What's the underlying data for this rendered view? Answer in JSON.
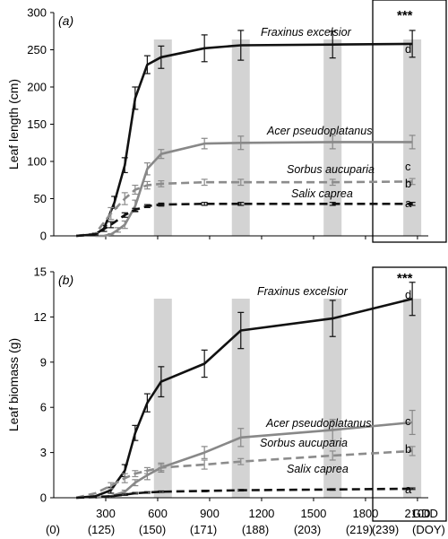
{
  "chart_data": [
    {
      "type": "line",
      "panel_label": "(a)",
      "ylabel": "Leaf length (cm)",
      "ylim": [
        0,
        300
      ],
      "yticks": [
        "0",
        "50",
        "100",
        "150",
        "200",
        "250",
        "300"
      ],
      "significance": "***",
      "x_ticks_gdd": [
        "300",
        "600",
        "900",
        "1200",
        "1500",
        "1800",
        "2100"
      ],
      "x_ticks_doy": [
        "(0)",
        "(125)",
        "(150)",
        "(171)",
        "(188)",
        "(203)",
        "(219)",
        "(239)"
      ],
      "x_unit_gdd": "GDD",
      "x_unit_doy": "(DOY)",
      "shaded_gdd": [
        630,
        1080,
        1610,
        2070
      ],
      "series": [
        {
          "name": "Fraxinus excelsior",
          "group": "d",
          "color": "#111111",
          "dashed": false,
          "x": [
            130,
            240,
            290,
            350,
            410,
            470,
            540,
            620,
            870,
            1080,
            1610,
            2070
          ],
          "y": [
            0,
            2,
            10,
            45,
            95,
            185,
            230,
            240,
            252,
            256,
            257,
            258
          ],
          "err": [
            0,
            1,
            4,
            8,
            10,
            15,
            12,
            15,
            18,
            20,
            18,
            18
          ]
        },
        {
          "name": "Acer pseudoplatanus",
          "group": "c",
          "color": "#888888",
          "dashed": false,
          "x": [
            240,
            290,
            330,
            370,
            410,
            470,
            540,
            620,
            870,
            1080,
            1610,
            2070
          ],
          "y": [
            0,
            0,
            2,
            8,
            15,
            40,
            90,
            110,
            124,
            125,
            126,
            126
          ],
          "err": [
            0,
            0,
            1,
            3,
            5,
            8,
            8,
            6,
            7,
            9,
            9,
            9
          ]
        },
        {
          "name": "Sorbus aucuparia",
          "group": "b",
          "color": "#8c8c8c",
          "dashed": true,
          "x": [
            130,
            240,
            330,
            410,
            470,
            540,
            620,
            870,
            1080,
            1610,
            2070
          ],
          "y": [
            0,
            3,
            30,
            50,
            62,
            68,
            70,
            72,
            72,
            72,
            73
          ],
          "err": [
            0,
            1,
            8,
            8,
            6,
            5,
            4,
            4,
            4,
            4,
            4
          ]
        },
        {
          "name": "Salix caprea",
          "group": "a",
          "color": "#111111",
          "dashed": true,
          "x": [
            130,
            240,
            330,
            410,
            470,
            540,
            620,
            870,
            1080,
            1610,
            2070
          ],
          "y": [
            0,
            2,
            15,
            28,
            35,
            40,
            42,
            43,
            43,
            43,
            43
          ],
          "err": [
            0,
            1,
            4,
            3,
            2,
            2,
            2,
            2,
            2,
            2,
            2
          ]
        }
      ]
    },
    {
      "type": "line",
      "panel_label": "(b)",
      "ylabel": "Leaf biomass (g)",
      "ylim": [
        0,
        15
      ],
      "yticks": [
        "0",
        "3",
        "6",
        "9",
        "12",
        "15"
      ],
      "significance": "***",
      "x_ticks_gdd": [
        "300",
        "600",
        "900",
        "1200",
        "1500",
        "1800",
        "2100"
      ],
      "x_ticks_doy": [
        "(0)",
        "(125)",
        "(150)",
        "(171)",
        "(188)",
        "(203)",
        "(219)",
        "(239)"
      ],
      "x_unit_gdd": "GDD",
      "x_unit_doy": "(DOY)",
      "shaded_gdd": [
        630,
        1080,
        1610,
        2070
      ],
      "series": [
        {
          "name": "Fraxinus excelsior",
          "group": "d",
          "color": "#111111",
          "dashed": false,
          "x": [
            130,
            240,
            330,
            410,
            470,
            540,
            620,
            870,
            1080,
            1610,
            2070
          ],
          "y": [
            0,
            0.1,
            0.5,
            1.8,
            4.3,
            6.3,
            7.7,
            8.9,
            11.1,
            11.9,
            13.2
          ],
          "err": [
            0,
            0,
            0.2,
            0.4,
            0.5,
            0.6,
            1.0,
            0.9,
            1.2,
            1.2,
            1.1
          ]
        },
        {
          "name": "Acer pseudoplatanus",
          "group": "c",
          "color": "#888888",
          "dashed": false,
          "x": [
            240,
            330,
            410,
            470,
            540,
            620,
            870,
            1080,
            1610,
            2070
          ],
          "y": [
            0,
            0.1,
            0.4,
            1.0,
            1.5,
            2.0,
            3.0,
            4.0,
            4.5,
            5.0
          ],
          "err": [
            0,
            0,
            0.1,
            0.2,
            0.3,
            0.3,
            0.4,
            0.6,
            0.7,
            0.8
          ]
        },
        {
          "name": "Sorbus aucuparia",
          "group": "b",
          "color": "#8c8c8c",
          "dashed": true,
          "x": [
            130,
            240,
            330,
            410,
            470,
            540,
            620,
            870,
            1080,
            1610,
            2070
          ],
          "y": [
            0,
            0.3,
            0.8,
            1.3,
            1.6,
            1.8,
            2.0,
            2.2,
            2.4,
            2.8,
            3.1
          ],
          "err": [
            0,
            0,
            0.2,
            0.3,
            0.2,
            0.2,
            0.2,
            0.3,
            0.2,
            0.3,
            0.3
          ]
        },
        {
          "name": "Salix caprea",
          "group": "a",
          "color": "#111111",
          "dashed": true,
          "x": [
            130,
            240,
            330,
            410,
            470,
            540,
            620,
            870,
            1080,
            1610,
            2070
          ],
          "y": [
            0,
            0.05,
            0.1,
            0.2,
            0.3,
            0.35,
            0.4,
            0.45,
            0.5,
            0.55,
            0.6
          ],
          "err": [
            0,
            0,
            0.02,
            0.04,
            0.05,
            0.05,
            0.05,
            0.05,
            0.05,
            0.05,
            0.05
          ]
        }
      ]
    }
  ]
}
